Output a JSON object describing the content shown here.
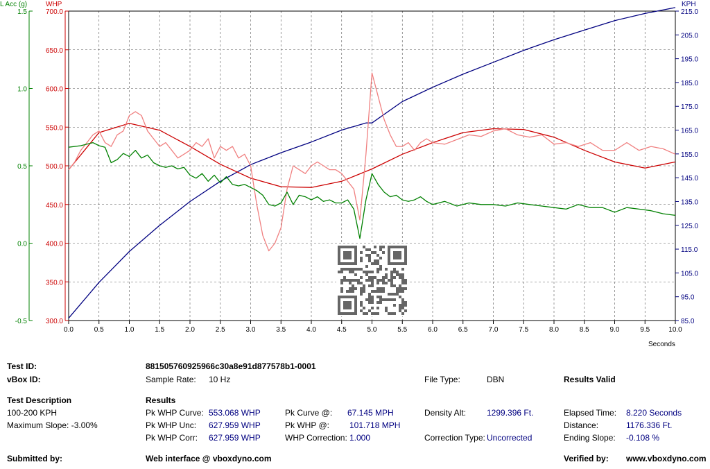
{
  "chart_data": {
    "type": "line",
    "xlabel": "Seconds",
    "xlim": [
      0,
      10
    ],
    "x_ticks": [
      "0.0",
      "0.5",
      "1.0",
      "1.5",
      "2.0",
      "2.5",
      "3.0",
      "3.5",
      "4.0",
      "4.5",
      "5.0",
      "5.5",
      "6.0",
      "6.5",
      "7.0",
      "7.5",
      "8.0",
      "8.5",
      "9.0",
      "9.5",
      "10.0"
    ],
    "grid": true,
    "axes": {
      "lacc": {
        "label": "L Acc (g)",
        "range": [
          -0.5,
          1.5
        ],
        "ticks": [
          "-0.5",
          "0.0",
          "0.5",
          "1.0",
          "1.5"
        ],
        "color": "#008000"
      },
      "whp": {
        "label": "WHP",
        "range": [
          300,
          700
        ],
        "ticks": [
          "300.0",
          "350.0",
          "400.0",
          "450.0",
          "500.0",
          "550.0",
          "600.0",
          "650.0",
          "700.0"
        ],
        "color": "#cc0000"
      },
      "kph": {
        "label": "KPH",
        "range": [
          85,
          215
        ],
        "ticks": [
          "85.0",
          "95.0",
          "105.0",
          "115.0",
          "125.0",
          "135.0",
          "145.0",
          "155.0",
          "165.0",
          "175.0",
          "185.0",
          "195.0",
          "205.0",
          "215.0"
        ],
        "color": "#000080"
      }
    },
    "series": [
      {
        "axis": "kph",
        "color": "#000080",
        "x": [
          0,
          0.5,
          1,
          1.5,
          2,
          2.5,
          3,
          3.5,
          4,
          4.5,
          4.9,
          5,
          5.5,
          6,
          6.5,
          7,
          7.5,
          8,
          8.5,
          9,
          9.5,
          10
        ],
        "y": [
          86,
          101,
          114,
          125,
          135,
          143.5,
          150.5,
          155.5,
          160,
          165,
          168,
          168,
          177,
          183,
          188.5,
          193.5,
          198.5,
          203,
          207,
          211,
          214,
          216.5
        ]
      },
      {
        "axis": "whp",
        "color": "#cc0000",
        "x": [
          0,
          0.5,
          1,
          1.5,
          2,
          2.5,
          3,
          3.5,
          4,
          4.5,
          5,
          5.5,
          6,
          6.5,
          7,
          7.5,
          8,
          8.5,
          9,
          9.5,
          10
        ],
        "y": [
          495,
          543,
          555,
          546,
          525,
          502,
          484,
          473,
          472,
          480,
          496,
          515,
          530,
          543,
          548,
          547,
          537,
          520,
          505,
          497,
          505
        ]
      },
      {
        "axis": "whp",
        "color": "#f08080",
        "x": [
          0,
          0.1,
          0.2,
          0.3,
          0.4,
          0.5,
          0.6,
          0.7,
          0.8,
          0.9,
          1.0,
          1.1,
          1.2,
          1.3,
          1.4,
          1.5,
          1.6,
          1.7,
          1.8,
          1.9,
          2.0,
          2.1,
          2.2,
          2.3,
          2.4,
          2.5,
          2.6,
          2.7,
          2.8,
          2.9,
          3.0,
          3.1,
          3.2,
          3.3,
          3.4,
          3.5,
          3.6,
          3.7,
          3.8,
          3.9,
          4.0,
          4.1,
          4.2,
          4.3,
          4.4,
          4.5,
          4.6,
          4.7,
          4.8,
          4.9,
          5.0,
          5.1,
          5.2,
          5.3,
          5.4,
          5.5,
          5.6,
          5.7,
          5.8,
          5.9,
          6.0,
          6.2,
          6.4,
          6.6,
          6.8,
          7.0,
          7.2,
          7.4,
          7.6,
          7.8,
          8.0,
          8.2,
          8.4,
          8.6,
          8.8,
          9.0,
          9.2,
          9.4,
          9.6,
          9.8,
          10.0
        ],
        "y": [
          495,
          505,
          520,
          530,
          540,
          545,
          530,
          525,
          540,
          545,
          565,
          570,
          565,
          545,
          535,
          525,
          530,
          520,
          510,
          515,
          520,
          530,
          525,
          535,
          510,
          525,
          520,
          525,
          510,
          515,
          500,
          450,
          410,
          390,
          400,
          420,
          470,
          500,
          495,
          490,
          500,
          505,
          500,
          495,
          495,
          490,
          480,
          470,
          430,
          515,
          620,
          590,
          560,
          540,
          525,
          525,
          530,
          520,
          530,
          535,
          530,
          528,
          534,
          540,
          538,
          545,
          548,
          540,
          537,
          540,
          528,
          530,
          525,
          530,
          520,
          520,
          530,
          520,
          525,
          522,
          515
        ]
      },
      {
        "axis": "lacc",
        "color": "#008000",
        "x": [
          0,
          0.2,
          0.4,
          0.5,
          0.6,
          0.7,
          0.8,
          0.9,
          1.0,
          1.1,
          1.2,
          1.3,
          1.4,
          1.5,
          1.6,
          1.7,
          1.8,
          1.9,
          2.0,
          2.1,
          2.2,
          2.3,
          2.4,
          2.5,
          2.6,
          2.7,
          2.8,
          2.9,
          3.0,
          3.1,
          3.2,
          3.3,
          3.4,
          3.5,
          3.6,
          3.7,
          3.8,
          3.9,
          4.0,
          4.1,
          4.2,
          4.3,
          4.4,
          4.5,
          4.6,
          4.7,
          4.8,
          4.9,
          5.0,
          5.1,
          5.2,
          5.3,
          5.4,
          5.5,
          5.6,
          5.7,
          5.8,
          5.9,
          6.0,
          6.2,
          6.4,
          6.6,
          6.8,
          7.0,
          7.2,
          7.4,
          7.6,
          7.8,
          8.0,
          8.2,
          8.4,
          8.6,
          8.8,
          9.0,
          9.2,
          9.4,
          9.6,
          9.8,
          10.0
        ],
        "y": [
          0.62,
          0.63,
          0.65,
          0.63,
          0.62,
          0.52,
          0.54,
          0.58,
          0.56,
          0.6,
          0.55,
          0.57,
          0.52,
          0.5,
          0.49,
          0.5,
          0.48,
          0.49,
          0.44,
          0.42,
          0.45,
          0.4,
          0.44,
          0.39,
          0.43,
          0.38,
          0.37,
          0.38,
          0.36,
          0.34,
          0.31,
          0.25,
          0.24,
          0.26,
          0.33,
          0.25,
          0.31,
          0.3,
          0.28,
          0.3,
          0.27,
          0.28,
          0.26,
          0.26,
          0.28,
          0.22,
          0.03,
          0.28,
          0.45,
          0.38,
          0.33,
          0.3,
          0.31,
          0.28,
          0.27,
          0.28,
          0.3,
          0.27,
          0.25,
          0.27,
          0.24,
          0.26,
          0.25,
          0.25,
          0.24,
          0.26,
          0.25,
          0.24,
          0.23,
          0.22,
          0.25,
          0.23,
          0.23,
          0.2,
          0.23,
          0.22,
          0.21,
          0.19,
          0.18
        ]
      }
    ]
  },
  "info": {
    "test_id_label": "Test ID:",
    "test_id_value": "881505760925966c30a8e91d877578b1-0001",
    "vbox_id_label": "vBox ID:",
    "sample_rate_label": "Sample Rate:",
    "sample_rate_value": "10 Hz",
    "file_type_label": "File Type:",
    "file_type_value": "DBN",
    "results_valid": "Results Valid",
    "test_desc_label": "Test Description",
    "test_desc_value": "100-200 KPH",
    "max_slope": "Maximum Slope:  -3.00%",
    "results_label": "Results",
    "pk_curve_label": "Pk WHP Curve:",
    "pk_curve_value": "553.068 WHP",
    "pk_unc_label": "Pk WHP Unc:",
    "pk_unc_value": "627.959 WHP",
    "pk_corr_label": "Pk WHP Corr:",
    "pk_corr_value": "627.959 WHP",
    "pk_curve_at_label": "Pk Curve @:",
    "pk_curve_at_value": "67.145 MPH",
    "pk_whp_at_label": "Pk WHP @:",
    "pk_whp_at_value": "101.718 MPH",
    "whp_corr_label": "WHP Correction:",
    "whp_corr_value": "1.000",
    "density_label": "Density Alt:",
    "density_value": "1299.396 Ft.",
    "corr_type_label": "Correction Type:",
    "corr_type_value": "Uncorrected",
    "elapsed_label": "Elapsed Time:",
    "elapsed_value": "8.220 Seconds",
    "distance_label": "Distance:",
    "distance_value": "1176.336 Ft.",
    "ending_slope_label": "Ending Slope:",
    "ending_slope_value": "-0.108 %",
    "submitted_label": "Submitted by:",
    "web_interface": "Web interface @ vboxdyno.com",
    "verified_label": "Verified by:",
    "verified_value": "www.vboxdyno.com"
  }
}
